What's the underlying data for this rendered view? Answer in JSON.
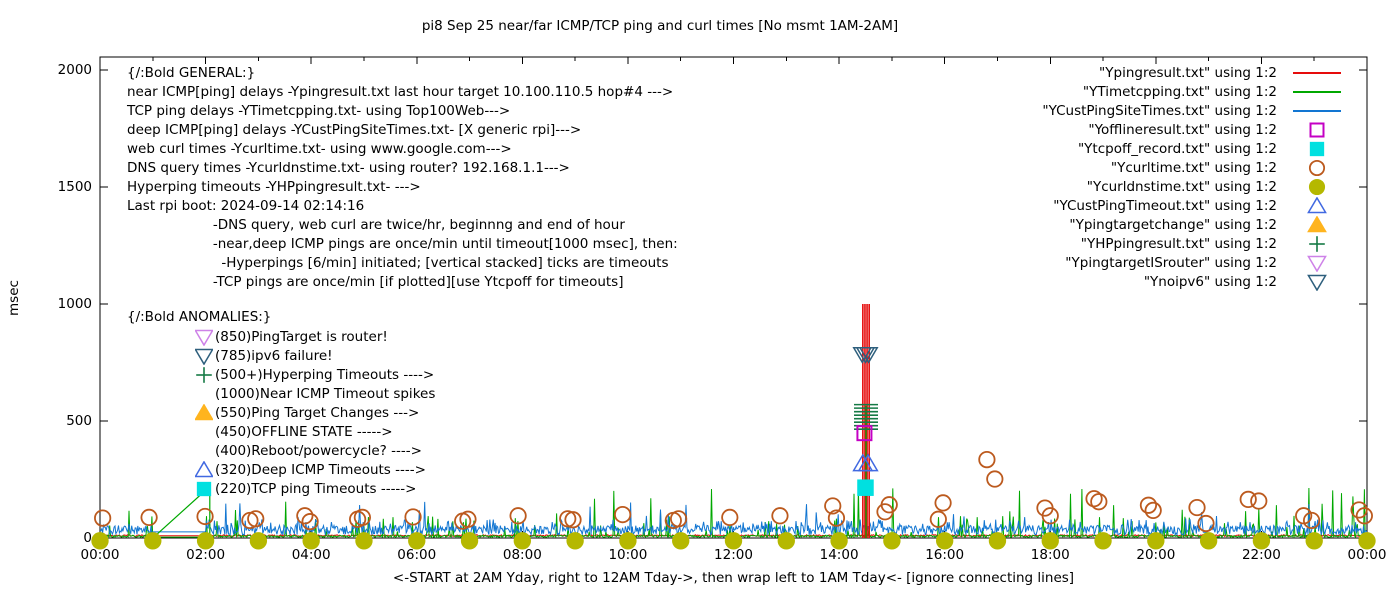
{
  "title": "pi8 Sep 25  near/far ICMP/TCP ping and curl times [No msmt 1AM-2AM]",
  "colors": {
    "near_icmp_red": "#e60c0c",
    "tcp_ping_green": "#00a800",
    "deep_icmp_blue": "#1276d2",
    "offline_magenta": "#c400c4",
    "tcpoff_cyan": "#00e0e0",
    "curl_orange": "#bc5a1e",
    "dns_olive": "#b5b800",
    "deep_timeout_royalblue": "#4169e1",
    "target_change_gold": "#ffb41e",
    "hyperping_darkgreen": "#157a45",
    "isrouter_violet": "#ce82e8",
    "noipv6_navy": "#2e5f7d"
  },
  "legend": {
    "entries": [
      {
        "label": "\"Ypingresult.txt\" using 1:2",
        "style": "line",
        "color": "#e60c0c"
      },
      {
        "label": "\"YTimetcpping.txt\" using 1:2",
        "style": "line",
        "color": "#00a800"
      },
      {
        "label": "\"YCustPingSiteTimes.txt\" using 1:2",
        "style": "line",
        "color": "#1276d2"
      },
      {
        "label": "\"Yofflineresult.txt\" using 1:2",
        "style": "square-open",
        "color": "#c400c4"
      },
      {
        "label": "\"Ytcpoff_record.txt\" using 1:2",
        "style": "square-fill",
        "color": "#00e0e0"
      },
      {
        "label": "\"Ycurltime.txt\" using 1:2",
        "style": "circle-open",
        "color": "#bc5a1e"
      },
      {
        "label": "\"Ycurldnstime.txt\" using 1:2",
        "style": "circle-fill",
        "color": "#b5b800"
      },
      {
        "label": "\"YCustPingTimeout.txt\" using 1:2",
        "style": "triangle-up-open",
        "color": "#4169e1"
      },
      {
        "label": "\"Ypingtargetchange\" using 1:2",
        "style": "triangle-up-fill",
        "color": "#ffb41e"
      },
      {
        "label": "\"YHPpingresult.txt\" using 1:2",
        "style": "plus",
        "color": "#157a45"
      },
      {
        "label": "\"YpingtargetISrouter\" using 1:2",
        "style": "triangle-down-open",
        "color": "#ce82e8"
      },
      {
        "label": "\"Ynoipv6\" using 1:2",
        "style": "triangle-down-open",
        "color": "#2e5f7d"
      }
    ]
  },
  "notes_general": {
    "lines": [
      "{/:Bold GENERAL:}",
      "near ICMP[ping] delays -Ypingresult.txt last hour target 10.100.110.5 hop#4 --->",
      "TCP ping delays -YTimetcpping.txt- using Top100Web--->",
      "deep ICMP[ping] delays -YCustPingSiteTimes.txt- [X generic rpi]--->",
      "web curl times -Ycurltime.txt- using www.google.com--->",
      "DNS query times -Ycurldnstime.txt- using router? 192.168.1.1--->",
      "Hyperping timeouts -YHPpingresult.txt- --->",
      "Last rpi boot: 2024-09-14 02:14:16",
      "                    -DNS query, web curl are twice/hr, beginnng and end of hour",
      "                    -near,deep ICMP pings are once/min until timeout[1000 msec], then:",
      "                      -Hyperpings [6/min] initiated; [vertical stacked] ticks are timeouts",
      "                    -TCP pings are once/min [if plotted][use Ytcpoff for timeouts]"
    ]
  },
  "notes_anomalies": {
    "heading": "{/:Bold ANOMALIES:}",
    "items": [
      {
        "marker": "triangle-down-open",
        "color": "#ce82e8",
        "text": "(850)PingTarget is router!"
      },
      {
        "marker": "triangle-down-open",
        "color": "#2e5f7d",
        "text": "(785)ipv6 failure!"
      },
      {
        "marker": "plus",
        "color": "#157a45",
        "text": "(500+)Hyperping Timeouts ---->"
      },
      {
        "marker": null,
        "color": null,
        "text": "(1000)Near ICMP Timeout spikes"
      },
      {
        "marker": "triangle-up-fill",
        "color": "#ffb41e",
        "text": "(550)Ping Target Changes --->"
      },
      {
        "marker": null,
        "color": null,
        "text": "(450)OFFLINE STATE ----->"
      },
      {
        "marker": null,
        "color": null,
        "text": "(400)Reboot/powercycle? ---->"
      },
      {
        "marker": "triangle-up-open",
        "color": "#4169e1",
        "text": "(320)Deep ICMP Timeouts ---->"
      },
      {
        "marker": "square-fill",
        "color": "#00e0e0",
        "text": "(220)TCP ping Timeouts ----->"
      }
    ]
  },
  "chart_data": {
    "type": "line",
    "title": "pi8 Sep 25  near/far ICMP/TCP ping and curl times [No msmt 1AM-2AM]",
    "xlabel": "<-START at 2AM Yday, right to 12AM Tday->, then wrap left to 1AM Tday<- [ignore connecting lines]",
    "ylabel": "msec",
    "ylim": [
      0,
      2000
    ],
    "yticks": [
      0,
      500,
      1000,
      1500,
      2000
    ],
    "xlim_hours": [
      0,
      24
    ],
    "xtick_labels": [
      "00:00",
      "02:00",
      "04:00",
      "06:00",
      "08:00",
      "10:00",
      "12:00",
      "14:00",
      "16:00",
      "18:00",
      "20:00",
      "22:00",
      "00:00"
    ],
    "grid": false,
    "legend_position": "top-right",
    "measurement_gap_hours": [
      1,
      2
    ],
    "series": [
      {
        "name": "Ypingresult.txt",
        "color": "#e60c0c",
        "samples_per_hour": 60,
        "base_ms": 7,
        "jitter_ms": 7,
        "gap_value_ms": 10,
        "spike1": null,
        "spike2": null
      },
      {
        "name": "YTimetcpping.txt",
        "color": "#00a800",
        "samples_per_hour": 60,
        "base_ms": 3,
        "jitter_ms": 9,
        "gap_value_ms": 4,
        "spike1": {
          "p": 0.07,
          "base": 25,
          "amp": 70
        },
        "spike2": {
          "p": 0.022,
          "base": 105,
          "amp": 110
        }
      },
      {
        "name": "YCustPingSiteTimes.txt",
        "color": "#1276d2",
        "samples_per_hour": 60,
        "base_ms": 14,
        "jitter_ms": 40,
        "gap_value_ms": 26,
        "spike1": {
          "p": 0.15,
          "base": 30,
          "amp": 50
        },
        "spike2": {
          "p": 0.02,
          "base": 60,
          "amp": 95
        }
      }
    ],
    "hourly_dns_markers": {
      "name": "Ycurldnstime.txt",
      "color": "#b5b800",
      "hours": [
        0,
        1,
        2,
        3,
        4,
        5,
        6,
        7,
        8,
        9,
        10,
        11,
        12,
        13,
        14,
        15,
        16,
        17,
        18,
        19,
        20,
        21,
        22,
        23,
        24
      ],
      "value_ms": 5
    },
    "web_curl_points": {
      "name": "Ycurltime.txt",
      "color": "#bc5a1e",
      "points": [
        [
          0.05,
          85
        ],
        [
          0.93,
          88
        ],
        [
          1.99,
          92
        ],
        [
          2.84,
          75
        ],
        [
          2.95,
          82
        ],
        [
          3.88,
          95
        ],
        [
          3.98,
          70
        ],
        [
          4.88,
          80
        ],
        [
          4.97,
          88
        ],
        [
          5.93,
          90
        ],
        [
          6.87,
          72
        ],
        [
          6.97,
          80
        ],
        [
          7.92,
          95
        ],
        [
          8.86,
          82
        ],
        [
          8.96,
          78
        ],
        [
          9.9,
          100
        ],
        [
          10.86,
          75
        ],
        [
          10.96,
          82
        ],
        [
          11.93,
          88
        ],
        [
          12.88,
          95
        ],
        [
          13.88,
          137
        ],
        [
          13.95,
          85
        ],
        [
          14.87,
          112
        ],
        [
          14.95,
          142
        ],
        [
          15.88,
          80
        ],
        [
          15.97,
          150
        ],
        [
          16.8,
          335
        ],
        [
          16.95,
          252
        ],
        [
          17.9,
          128
        ],
        [
          18.0,
          95
        ],
        [
          18.83,
          168
        ],
        [
          18.92,
          155
        ],
        [
          19.86,
          140
        ],
        [
          19.95,
          118
        ],
        [
          20.78,
          130
        ],
        [
          20.95,
          62
        ],
        [
          21.75,
          165
        ],
        [
          21.95,
          158
        ],
        [
          22.8,
          95
        ],
        [
          22.95,
          75
        ],
        [
          23.85,
          120
        ],
        [
          23.95,
          95
        ]
      ]
    },
    "gap_artifact_line": {
      "color": "#00a800",
      "points": [
        [
          1.02,
          4
        ],
        [
          2.08,
          220
        ],
        [
          2.08,
          4
        ]
      ]
    },
    "anomaly_cluster": {
      "time_label": "~14:30",
      "near_icmp_timeout_spikes": {
        "hours": [
          14.45,
          14.49,
          14.53,
          14.57
        ],
        "top_ms": 1000,
        "color": "#e60c0c"
      },
      "green_spike": {
        "hour": 14.51,
        "top_ms": 565,
        "color": "#00a800"
      },
      "noipv6_markers": {
        "hours": [
          14.44,
          14.5,
          14.56
        ],
        "value_ms": 785,
        "color": "#2e5f7d"
      },
      "hyperping_timeout_ticks": {
        "hour": 14.51,
        "values_ms": [
          465,
          480,
          495,
          510,
          525,
          540,
          555,
          570
        ],
        "color": "#157a45"
      },
      "offline_marker": {
        "hour": 14.48,
        "value_ms": 448,
        "color": "#c400c4"
      },
      "deep_icmp_timeout_markers": {
        "hours": [
          14.45,
          14.55
        ],
        "value_ms": 318,
        "color": "#4169e1"
      },
      "tcp_timeout_marker": {
        "hour": 14.5,
        "value_ms": 215,
        "color": "#00e0e0"
      }
    }
  }
}
